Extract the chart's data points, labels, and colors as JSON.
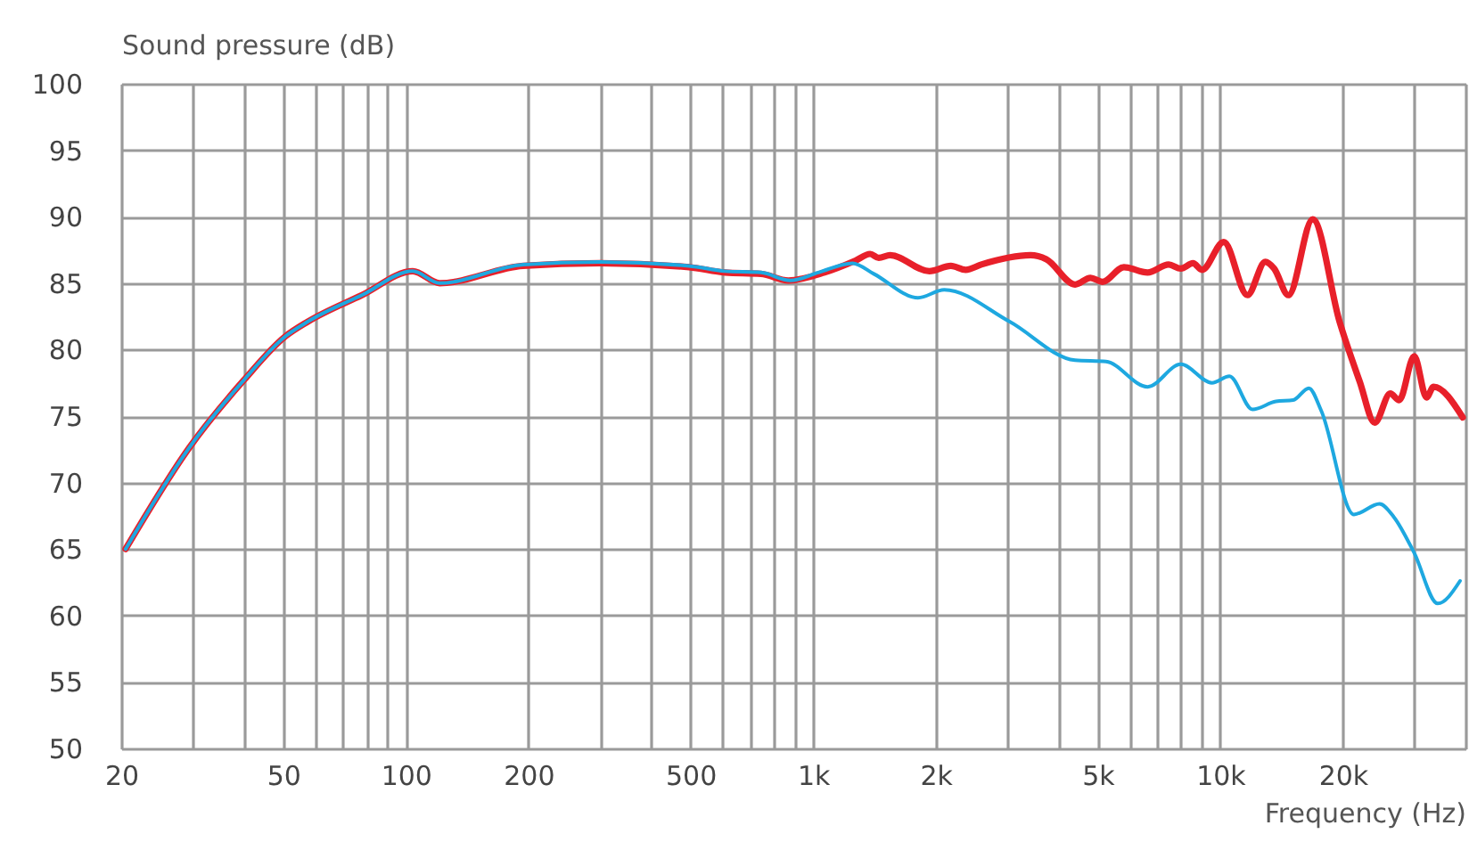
{
  "chart_data": {
    "type": "line",
    "xlabel": "Frequency (Hz)",
    "ylabel": "Sound pressure (dB)",
    "log": "x",
    "grid": true,
    "legend": false,
    "marker": "none",
    "line_style": "solid",
    "xlim": [
      20,
      40000
    ],
    "ylim": [
      50,
      100
    ],
    "xticks": [
      20,
      {
        "value": 30,
        "label": null
      },
      {
        "value": 40,
        "label": null
      },
      50,
      {
        "value": 60,
        "label": null
      },
      {
        "value": 70,
        "label": null
      },
      {
        "value": 80,
        "label": null
      },
      {
        "value": 90,
        "label": null
      },
      100,
      200,
      {
        "value": 300,
        "label": null
      },
      {
        "value": 400,
        "label": null
      },
      500,
      {
        "value": 600,
        "label": null
      },
      {
        "value": 700,
        "label": null
      },
      {
        "value": 800,
        "label": null
      },
      {
        "value": 900,
        "label": null
      },
      {
        "value": 1000,
        "label": "1k"
      },
      {
        "value": 2000,
        "label": "2k"
      },
      {
        "value": 3000,
        "label": null
      },
      {
        "value": 4000,
        "label": null
      },
      {
        "value": 5000,
        "label": "5k"
      },
      {
        "value": 6000,
        "label": null
      },
      {
        "value": 7000,
        "label": null
      },
      {
        "value": 8000,
        "label": null
      },
      {
        "value": 9000,
        "label": null
      },
      {
        "value": 10000,
        "label": "10k"
      },
      {
        "value": 20000,
        "label": "20k"
      },
      {
        "value": 30000,
        "label": null
      },
      {
        "value": 40000,
        "label": null
      }
    ],
    "yticks": [
      50,
      55,
      60,
      65,
      70,
      75,
      80,
      85,
      90,
      95,
      100
    ],
    "series": [
      {
        "color": "#e8202a",
        "x": [
          20.5,
          29.5,
          40,
          50.6,
          57.4,
          78,
          104,
          121,
          194,
          300,
          496,
          608,
          745,
          870,
          1066,
          1271,
          1381,
          1450,
          1546,
          1930,
          2180,
          2370,
          2590,
          3420,
          3740,
          4400,
          4800,
          5140,
          5800,
          6630,
          7470,
          8000,
          8570,
          9020,
          10200,
          11660,
          12900,
          13560,
          14700,
          16870,
          19630,
          22000,
          23960,
          26150,
          27500,
          29950,
          32100,
          33400,
          39400
        ],
        "values": [
          65,
          72.7,
          77.7,
          81,
          82.1,
          84.1,
          85.9,
          85,
          86.3,
          86.5,
          86.2,
          85.8,
          85.7,
          85.2,
          85.8,
          86.7,
          87.2,
          86.9,
          87.1,
          85.9,
          86.3,
          86,
          86.4,
          87.1,
          86.8,
          84.9,
          85.4,
          85.1,
          86.2,
          85.8,
          86.4,
          86.1,
          86.5,
          86,
          88.1,
          84.1,
          86.6,
          86.1,
          84.1,
          89.8,
          82.1,
          77.6,
          74.5,
          76.7,
          76.2,
          79.5,
          76.4,
          77.2,
          74.9
        ]
      },
      {
        "color": "#1ea8e0",
        "x": [
          20.5,
          29.5,
          40,
          50.6,
          57.4,
          78,
          104,
          121,
          194,
          300,
          496,
          608,
          745,
          880,
          1030,
          1250,
          1410,
          1810,
          2100,
          3040,
          4400,
          5240,
          6630,
          8000,
          9540,
          10530,
          12000,
          13700,
          15100,
          16500,
          17700,
          21300,
          24600,
          26700,
          29950,
          34200,
          38800
        ],
        "values": [
          65,
          72.7,
          77.7,
          81,
          82.1,
          84.1,
          85.9,
          85,
          86.4,
          86.6,
          86.3,
          85.9,
          85.8,
          85.2,
          85.8,
          86.5,
          85.7,
          83.9,
          84.5,
          82.1,
          79.2,
          79.1,
          77.2,
          78.9,
          77.5,
          78,
          75.5,
          76.1,
          76.2,
          77.1,
          75.4,
          67.6,
          68.4,
          67.4,
          64.7,
          60.9,
          62.6
        ]
      }
    ]
  }
}
